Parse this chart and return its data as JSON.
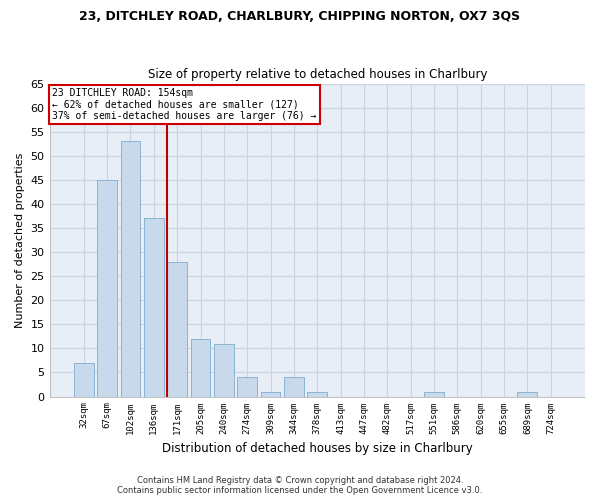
{
  "title1": "23, DITCHLEY ROAD, CHARLBURY, CHIPPING NORTON, OX7 3QS",
  "title2": "Size of property relative to detached houses in Charlbury",
  "xlabel": "Distribution of detached houses by size in Charlbury",
  "ylabel": "Number of detached properties",
  "categories": [
    "32sqm",
    "67sqm",
    "102sqm",
    "136sqm",
    "171sqm",
    "205sqm",
    "240sqm",
    "274sqm",
    "309sqm",
    "344sqm",
    "378sqm",
    "413sqm",
    "447sqm",
    "482sqm",
    "517sqm",
    "551sqm",
    "586sqm",
    "620sqm",
    "655sqm",
    "689sqm",
    "724sqm"
  ],
  "values": [
    7,
    45,
    53,
    37,
    28,
    12,
    11,
    4,
    1,
    4,
    1,
    0,
    0,
    0,
    0,
    1,
    0,
    0,
    0,
    1,
    0
  ],
  "bar_color": "#c8d9ec",
  "bar_edge_color": "#8ab4d4",
  "grid_color": "#c8d4e4",
  "background_color": "#e8eef6",
  "vline_x": 3.57,
  "vline_color": "#bb0000",
  "annotation_line1": "23 DITCHLEY ROAD: 154sqm",
  "annotation_line2": "← 62% of detached houses are smaller (127)",
  "annotation_line3": "37% of semi-detached houses are larger (76) →",
  "annotation_box_color": "#ffffff",
  "annotation_box_edge": "#cc0000",
  "footer_line1": "Contains HM Land Registry data © Crown copyright and database right 2024.",
  "footer_line2": "Contains public sector information licensed under the Open Government Licence v3.0.",
  "ylim": [
    0,
    65
  ],
  "yticks": [
    0,
    5,
    10,
    15,
    20,
    25,
    30,
    35,
    40,
    45,
    50,
    55,
    60,
    65
  ]
}
